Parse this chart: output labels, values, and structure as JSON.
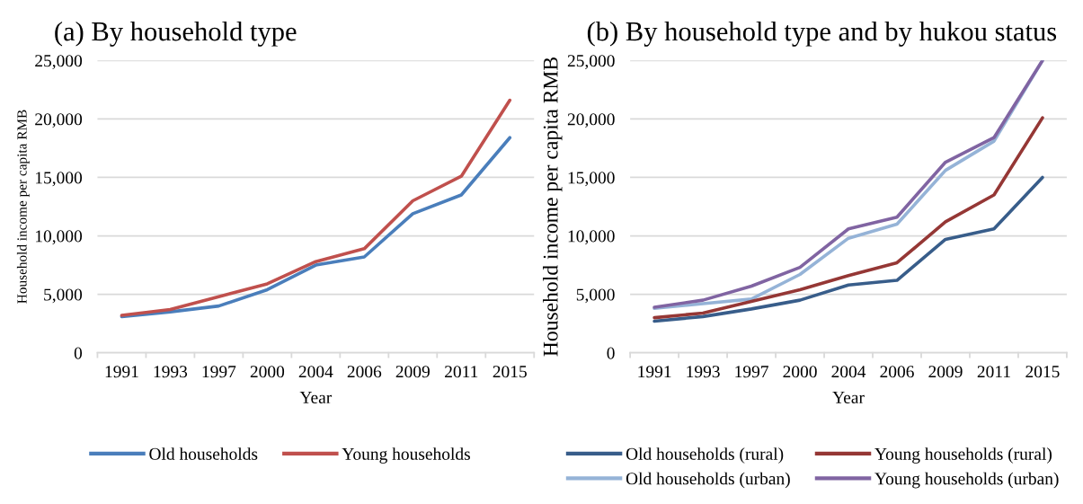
{
  "chart_data": [
    {
      "type": "line",
      "title": "(a) By household type",
      "xlabel": "Year",
      "ylabel": "Household income per capita RMB",
      "categories": [
        "1991",
        "1993",
        "1997",
        "2000",
        "2004",
        "2006",
        "2009",
        "2011",
        "2015"
      ],
      "series": [
        {
          "name": "Old households",
          "color": "#4a7ebb",
          "values": [
            3100,
            3500,
            4000,
            5400,
            7500,
            8200,
            11900,
            13500,
            18400
          ]
        },
        {
          "name": "Young households",
          "color": "#c0504d",
          "values": [
            3200,
            3700,
            4800,
            5900,
            7800,
            8900,
            13000,
            15100,
            21600
          ]
        }
      ],
      "ylim": [
        0,
        25000
      ],
      "yticks": [
        0,
        {
          "value": 5000,
          "label": "5,000"
        },
        {
          "value": 10000,
          "label": "10,000"
        },
        {
          "value": 15000,
          "label": "15,000"
        },
        {
          "value": 20000,
          "label": "20,000"
        },
        {
          "value": 25000,
          "label": "25,000"
        }
      ],
      "grid": "y",
      "legend": "bottom",
      "marker": "none",
      "line_style": "solid"
    },
    {
      "type": "line",
      "title": "(b) By household type and by hukou status",
      "xlabel": "Year",
      "ylabel": "Household income per capita RMB",
      "categories": [
        "1991",
        "1993",
        "1997",
        "2000",
        "2004",
        "2006",
        "2009",
        "2011",
        "2015"
      ],
      "series": [
        {
          "name": "Old households (rural)",
          "color": "#385d8a",
          "values": [
            2700,
            3100,
            3750,
            4500,
            5800,
            6200,
            9700,
            10600,
            15000
          ]
        },
        {
          "name": "Old households (urban)",
          "color": "#95b3d7",
          "values": [
            3800,
            4200,
            4600,
            6700,
            9800,
            11000,
            15600,
            18100,
            25000
          ]
        },
        {
          "name": "Young households (rural)",
          "color": "#953735",
          "values": [
            3000,
            3400,
            4400,
            5400,
            6600,
            7700,
            11200,
            13500,
            20100
          ]
        },
        {
          "name": "Young households (urban)",
          "color": "#8064a2",
          "values": [
            3900,
            4500,
            5700,
            7300,
            10600,
            11600,
            16300,
            18400,
            25000
          ]
        }
      ],
      "ylim": [
        0,
        25000
      ],
      "yticks": [
        0,
        {
          "value": 5000,
          "label": "5,000"
        },
        {
          "value": 10000,
          "label": "10,000"
        },
        {
          "value": 15000,
          "label": "15,000"
        },
        {
          "value": 20000,
          "label": "20,000"
        },
        {
          "value": 25000,
          "label": "25,000"
        }
      ],
      "grid": "y",
      "legend": "bottom",
      "marker": "none",
      "line_style": "solid"
    }
  ]
}
